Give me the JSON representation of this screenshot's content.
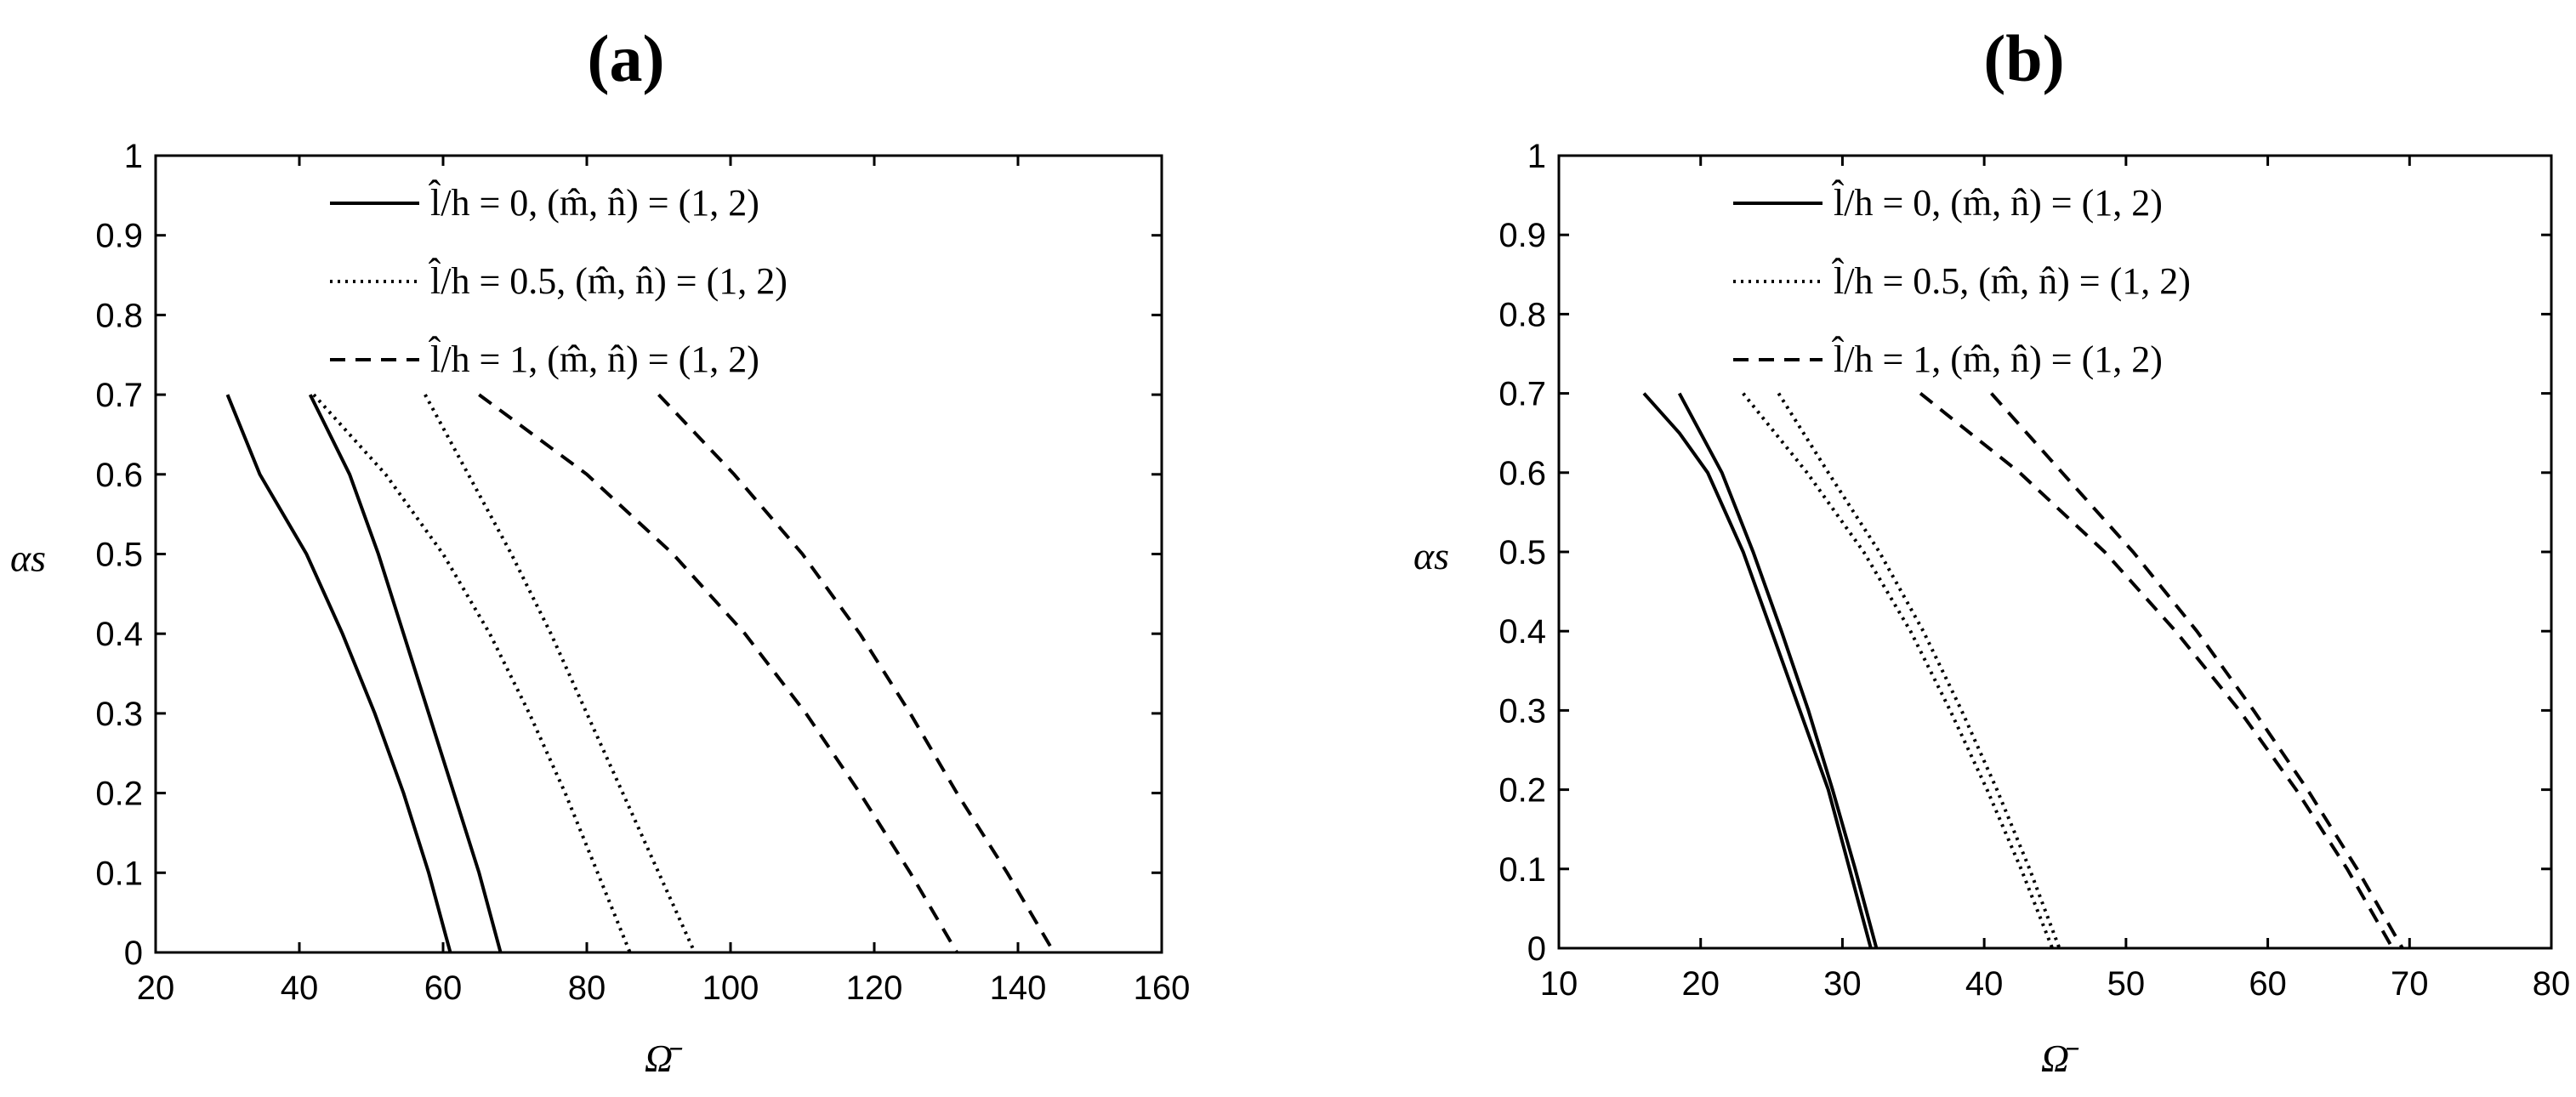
{
  "chart_data": [
    {
      "type": "line",
      "title": "(a)",
      "xlabel": "Ω̄",
      "ylabel": "αs",
      "xlim": [
        20,
        160
      ],
      "ylim": [
        0,
        1
      ],
      "xticks": [
        20,
        40,
        60,
        80,
        100,
        120,
        140,
        160
      ],
      "yticks": [
        0,
        0.1,
        0.2,
        0.3,
        0.4,
        0.5,
        0.6,
        0.7,
        0.8,
        0.9,
        1
      ],
      "grid": false,
      "legend_position": "top",
      "legend": [
        {
          "label": "l̂/h = 0, (m̂, n̂) = (1, 2)",
          "style": "solid"
        },
        {
          "label": "l̂/h = 0.5, (m̂, n̂) = (1, 2)",
          "style": "dotted"
        },
        {
          "label": "l̂/h = 1, (m̂, n̂) = (1, 2)",
          "style": "dashed"
        }
      ],
      "series": [
        {
          "style": "solid",
          "points": [
            [
              30,
              0.7
            ],
            [
              34.5,
              0.6
            ],
            [
              41,
              0.5
            ],
            [
              46,
              0.4
            ],
            [
              50.5,
              0.3
            ],
            [
              54.5,
              0.2
            ],
            [
              58,
              0.1
            ],
            [
              61,
              0
            ]
          ]
        },
        {
          "style": "solid",
          "points": [
            [
              41.5,
              0.7
            ],
            [
              47,
              0.6
            ],
            [
              51,
              0.5
            ],
            [
              54.5,
              0.4
            ],
            [
              58,
              0.3
            ],
            [
              61.5,
              0.2
            ],
            [
              65,
              0.1
            ],
            [
              68,
              0
            ]
          ]
        },
        {
          "style": "dotted",
          "points": [
            [
              42,
              0.7
            ],
            [
              52,
              0.6
            ],
            [
              60,
              0.5
            ],
            [
              66.5,
              0.4
            ],
            [
              72,
              0.3
            ],
            [
              77,
              0.2
            ],
            [
              81.5,
              0.1
            ],
            [
              86,
              0
            ]
          ]
        },
        {
          "style": "dotted",
          "points": [
            [
              57.5,
              0.7
            ],
            [
              63.5,
              0.6
            ],
            [
              69.5,
              0.5
            ],
            [
              75,
              0.4
            ],
            [
              80,
              0.3
            ],
            [
              85,
              0.2
            ],
            [
              90,
              0.1
            ],
            [
              95,
              0
            ]
          ]
        },
        {
          "style": "dashed",
          "points": [
            [
              65,
              0.7
            ],
            [
              80,
              0.6
            ],
            [
              92,
              0.5
            ],
            [
              102,
              0.4
            ],
            [
              110.5,
              0.3
            ],
            [
              118,
              0.2
            ],
            [
              125,
              0.1
            ],
            [
              131.5,
              0
            ]
          ]
        },
        {
          "style": "dashed",
          "points": [
            [
              90,
              0.7
            ],
            [
              100.5,
              0.6
            ],
            [
              110,
              0.5
            ],
            [
              118,
              0.4
            ],
            [
              125,
              0.3
            ],
            [
              131.5,
              0.2
            ],
            [
              138.5,
              0.1
            ],
            [
              145,
              0
            ]
          ]
        }
      ]
    },
    {
      "type": "line",
      "title": "(b)",
      "xlabel": "Ω̄",
      "ylabel": "αs",
      "xlim": [
        10,
        80
      ],
      "ylim": [
        0,
        1
      ],
      "xticks": [
        10,
        20,
        30,
        40,
        50,
        60,
        70,
        80
      ],
      "yticks": [
        0,
        0.1,
        0.2,
        0.3,
        0.4,
        0.5,
        0.6,
        0.7,
        0.8,
        0.9,
        1
      ],
      "grid": false,
      "legend_position": "top",
      "legend": [
        {
          "label": "l̂/h = 0, (m̂, n̂) = (1, 2)",
          "style": "solid"
        },
        {
          "label": "l̂/h = 0.5, (m̂, n̂) = (1, 2)",
          "style": "dotted"
        },
        {
          "label": "l̂/h = 1, (m̂, n̂) = (1, 2)",
          "style": "dashed"
        }
      ],
      "series": [
        {
          "style": "solid",
          "points": [
            [
              16,
              0.7
            ],
            [
              18.5,
              0.65
            ],
            [
              20.5,
              0.6
            ],
            [
              23,
              0.5
            ],
            [
              25,
              0.4
            ],
            [
              27,
              0.3
            ],
            [
              29,
              0.2
            ],
            [
              30.5,
              0.1
            ],
            [
              32,
              0
            ]
          ]
        },
        {
          "style": "solid",
          "points": [
            [
              18.5,
              0.7
            ],
            [
              21.5,
              0.6
            ],
            [
              23.7,
              0.5
            ],
            [
              25.7,
              0.4
            ],
            [
              27.6,
              0.3
            ],
            [
              29.3,
              0.2
            ],
            [
              30.9,
              0.1
            ],
            [
              32.4,
              0
            ]
          ]
        },
        {
          "style": "dotted",
          "points": [
            [
              23,
              0.7
            ],
            [
              27.5,
              0.6
            ],
            [
              31.5,
              0.5
            ],
            [
              34.8,
              0.4
            ],
            [
              37.6,
              0.3
            ],
            [
              40.2,
              0.2
            ],
            [
              42.6,
              0.1
            ],
            [
              44.8,
              0
            ]
          ]
        },
        {
          "style": "dotted",
          "points": [
            [
              25.5,
              0.7
            ],
            [
              29,
              0.6
            ],
            [
              32.6,
              0.5
            ],
            [
              35.7,
              0.4
            ],
            [
              38.4,
              0.3
            ],
            [
              40.9,
              0.2
            ],
            [
              43.2,
              0.1
            ],
            [
              45.3,
              0
            ]
          ]
        },
        {
          "style": "dashed",
          "points": [
            [
              35.5,
              0.7
            ],
            [
              42.5,
              0.6
            ],
            [
              48.5,
              0.5
            ],
            [
              53.5,
              0.4
            ],
            [
              58,
              0.3
            ],
            [
              62,
              0.2
            ],
            [
              65.6,
              0.1
            ],
            [
              68.8,
              0
            ]
          ]
        },
        {
          "style": "dashed",
          "points": [
            [
              40.5,
              0.7
            ],
            [
              45.5,
              0.6
            ],
            [
              50.5,
              0.5
            ],
            [
              55,
              0.4
            ],
            [
              59,
              0.3
            ],
            [
              62.8,
              0.2
            ],
            [
              66.3,
              0.1
            ],
            [
              69.5,
              0
            ]
          ]
        }
      ]
    }
  ]
}
